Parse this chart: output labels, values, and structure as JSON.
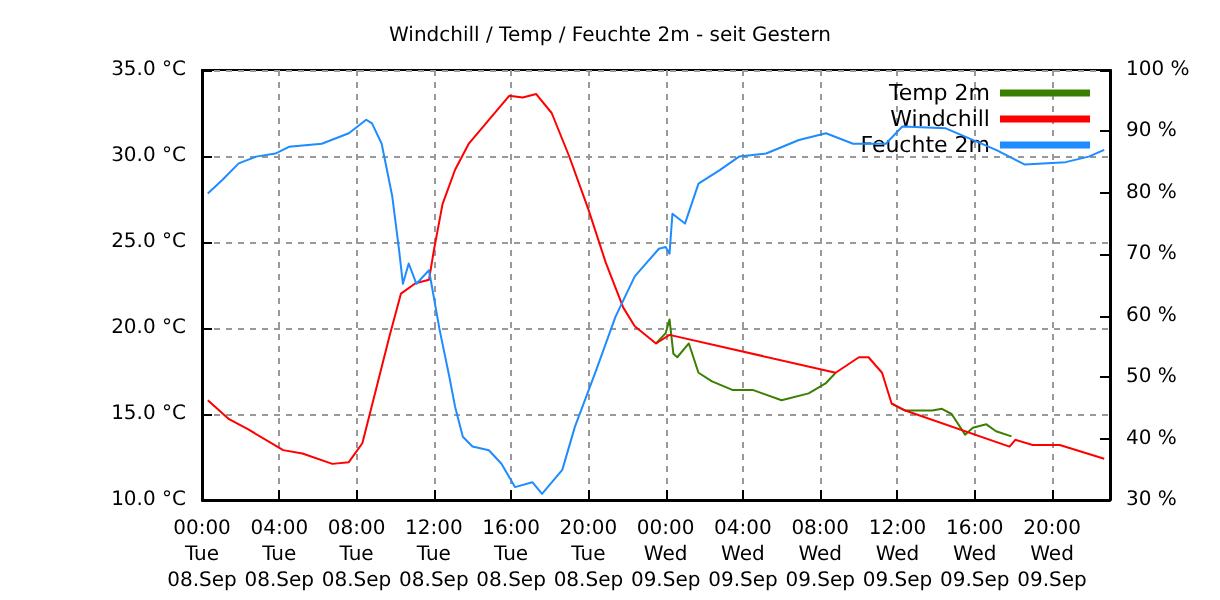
{
  "chart_data": {
    "type": "line",
    "title": "Windchill / Temp / Feuchte 2m - seit Gestern",
    "xlim": [
      "--09-08T00:00",
      "--09-09T23:00"
    ],
    "xticks": [
      {
        "value": "--09-08T00:00",
        "label": "00:00\nTue\n08.Sep"
      },
      {
        "value": "--09-08T04:00",
        "label": "04:00\nTue\n08.Sep"
      },
      {
        "value": "--09-08T08:00",
        "label": "08:00\nTue\n08.Sep"
      },
      {
        "value": "--09-08T12:00",
        "label": "12:00\nTue\n08.Sep"
      },
      {
        "value": "--09-08T16:00",
        "label": "16:00\nTue\n08.Sep"
      },
      {
        "value": "--09-08T20:00",
        "label": "20:00\nTue\n08.Sep"
      },
      {
        "value": "--09-09T00:00",
        "label": "00:00\nWed\n09.Sep"
      },
      {
        "value": "--09-09T04:00",
        "label": "04:00\nWed\n09.Sep"
      },
      {
        "value": "--09-09T08:00",
        "label": "08:00\nWed\n09.Sep"
      },
      {
        "value": "--09-09T12:00",
        "label": "12:00\nWed\n09.Sep"
      },
      {
        "value": "--09-09T16:00",
        "label": "16:00\nWed\n09.Sep"
      },
      {
        "value": "--09-09T20:00",
        "label": "20:00\nWed\n09.Sep"
      }
    ],
    "ylim": [
      10,
      35
    ],
    "yticks": [
      {
        "value": 10,
        "label": "10.0 °C"
      },
      {
        "value": 15,
        "label": "15.0 °C"
      },
      {
        "value": 20,
        "label": "20.0 °C"
      },
      {
        "value": 25,
        "label": "25.0 °C"
      },
      {
        "value": 30,
        "label": "30.0 °C"
      },
      {
        "value": 35,
        "label": "35.0 °C"
      }
    ],
    "y2lim": [
      30,
      100
    ],
    "y2ticks": [
      {
        "value": 30,
        "label": "30 %"
      },
      {
        "value": 40,
        "label": "40 %"
      },
      {
        "value": 50,
        "label": "50 %"
      },
      {
        "value": 60,
        "label": "60 %"
      },
      {
        "value": 70,
        "label": "70 %"
      },
      {
        "value": 80,
        "label": "80 %"
      },
      {
        "value": 90,
        "label": "90 %"
      },
      {
        "value": 100,
        "label": "100 %"
      }
    ],
    "grid": true,
    "legend": "top right",
    "marker": "none",
    "line_style": "solid",
    "series": [
      {
        "name": "Temp 2m",
        "color": "#3a8000",
        "x": [
          "--09-08T23:30",
          "--09-09T00:00",
          "--09-09T00:12",
          "--09-09T00:24",
          "--09-09T00:36",
          "--09-09T01:12",
          "--09-09T01:42",
          "--09-09T02:24",
          "--09-09T03:27",
          "--09-09T04:30",
          "--09-09T06:00",
          "--09-09T07:24",
          "--09-09T08:18",
          "--09-09T08:48",
          "--09-09T10:00",
          "--09-09T10:30",
          "--09-09T11:12",
          "--09-09T11:42",
          "--09-09T12:24",
          "--09-09T13:48",
          "--09-09T14:18",
          "--09-09T14:48",
          "--09-09T15:30",
          "--09-09T15:54",
          "--09-09T16:36",
          "--09-09T17:06",
          "--09-09T17:54"
        ],
        "values": [
          19.1,
          19.7,
          20.5,
          18.5,
          18.3,
          19.1,
          17.4,
          16.9,
          16.4,
          16.4,
          15.8,
          16.2,
          16.8,
          17.4,
          null,
          null,
          null,
          15.6,
          15.2,
          15.2,
          15.3,
          15.0,
          13.8,
          14.2,
          14.4,
          14.0,
          13.7
        ]
      },
      {
        "name": "Windchill",
        "color": "#ff0000",
        "x": [
          "--09-08T00:18",
          "--09-08T01:24",
          "--09-08T02:24",
          "--09-08T04:12",
          "--09-08T05:12",
          "--09-08T06:45",
          "--09-08T07:36",
          "--09-08T08:18",
          "--09-08T09:00",
          "--09-08T09:42",
          "--09-08T10:18",
          "--09-08T11:03",
          "--09-08T11:45",
          "--09-08T12:00",
          "--09-08T12:27",
          "--09-08T13:06",
          "--09-08T13:48",
          "--09-08T14:51",
          "--09-08T15:54",
          "--09-08T16:36",
          "--09-08T17:18",
          "--09-08T18:06",
          "--09-08T19:00",
          "--09-08T20:00",
          "--09-08T20:54",
          "--09-08T21:48",
          "--09-08T22:24",
          "--09-08T23:30",
          "--09-09T00:12",
          "--09-09T08:48",
          "--09-09T10:00",
          "--09-09T10:30",
          "--09-09T11:12",
          "--09-09T11:42",
          "--09-09T12:24",
          "--09-09T17:48",
          "--09-09T18:06",
          "--09-09T19:00",
          "--09-09T20:24",
          "--09-09T22:42"
        ],
        "values": [
          15.8,
          14.7,
          14.1,
          12.9,
          12.7,
          12.1,
          12.2,
          13.3,
          16.4,
          19.5,
          22.0,
          22.6,
          22.8,
          24.5,
          27.2,
          29.2,
          30.7,
          32.1,
          33.5,
          33.4,
          33.6,
          32.5,
          30.0,
          26.9,
          23.8,
          21.2,
          20.1,
          19.1,
          19.6,
          17.4,
          18.3,
          18.3,
          17.4,
          15.6,
          15.2,
          13.1,
          13.5,
          13.2,
          13.2,
          12.4
        ]
      },
      {
        "name": "Feuchte 2m",
        "color": "#1e8cff",
        "axis": "y2",
        "x": [
          "--09-08T00:18",
          "--09-08T01:03",
          "--09-08T01:54",
          "--09-08T02:48",
          "--09-08T03:48",
          "--09-08T04:30",
          "--09-08T06:12",
          "--09-08T07:36",
          "--09-08T08:30",
          "--09-08T08:48",
          "--09-08T09:18",
          "--09-08T09:51",
          "--09-08T10:12",
          "--09-08T10:24",
          "--09-08T10:42",
          "--09-08T11:06",
          "--09-08T11:45",
          "--09-08T12:18",
          "--09-08T12:48",
          "--09-08T13:06",
          "--09-08T13:30",
          "--09-08T14:00",
          "--09-08T14:51",
          "--09-08T15:30",
          "--09-08T16:12",
          "--09-08T17:06",
          "--09-08T17:36",
          "--09-08T18:39",
          "--09-08T19:18",
          "--09-08T20:24",
          "--09-08T21:24",
          "--09-08T22:24",
          "--09-08T23:39",
          "--09-09T00:00",
          "--09-09T00:12",
          "--09-09T00:21",
          "--09-09T01:00",
          "--09-09T01:42",
          "--09-09T02:48",
          "--09-09T03:48",
          "--09-09T05:12",
          "--09-09T06:54",
          "--09-09T08:18",
          "--09-09T09:42",
          "--09-09T11:24",
          "--09-09T12:15",
          "--09-09T14:30",
          "--09-09T17:06",
          "--09-09T18:36",
          "--09-09T20:42",
          "--09-09T21:54",
          "--09-09T22:42"
        ],
        "values": [
          79.9,
          82.1,
          84.8,
          85.9,
          86.4,
          87.5,
          88.0,
          89.7,
          91.9,
          91.3,
          88.0,
          79.4,
          70.7,
          65.2,
          68.5,
          65.2,
          67.4,
          57.7,
          50.1,
          45.2,
          40.3,
          38.7,
          38.1,
          35.9,
          32.1,
          32.9,
          31.0,
          34.9,
          41.9,
          51.1,
          59.8,
          66.4,
          70.9,
          71.2,
          70.1,
          76.6,
          75.0,
          81.5,
          83.7,
          85.9,
          86.4,
          88.6,
          89.7,
          88.0,
          88.0,
          90.8,
          90.5,
          87.0,
          84.6,
          85.0,
          85.9,
          87.0
        ]
      }
    ]
  }
}
